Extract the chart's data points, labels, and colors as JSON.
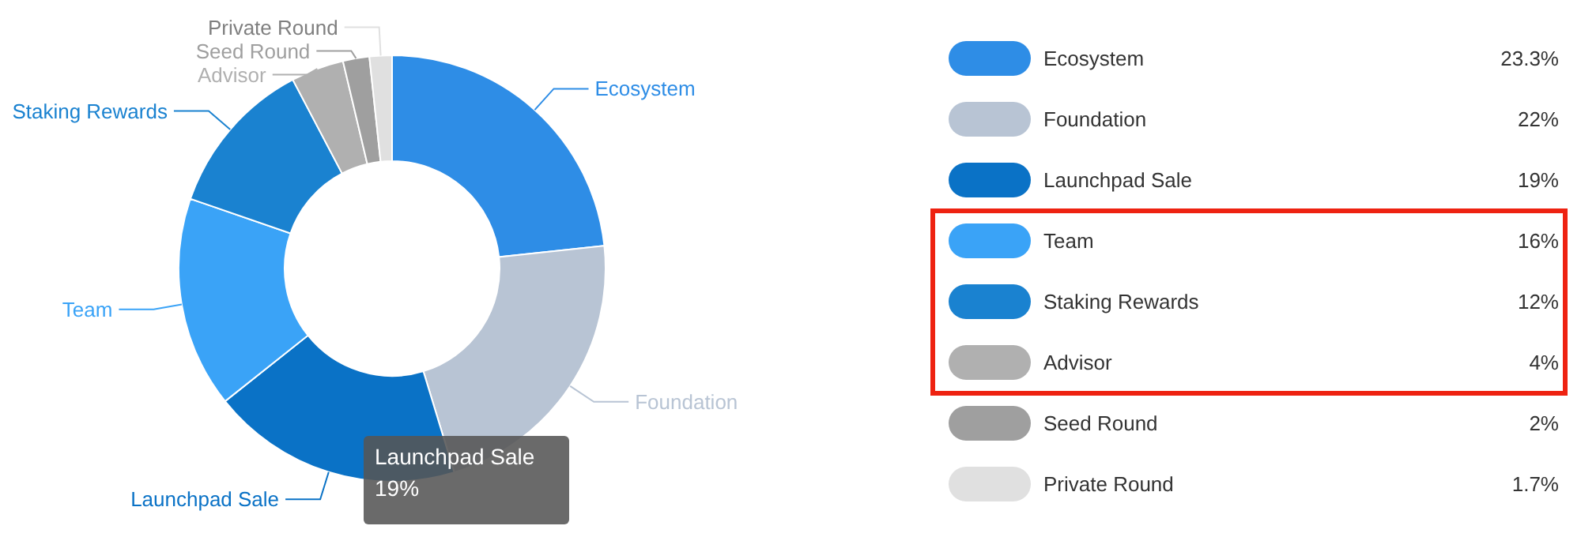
{
  "chart_data": {
    "type": "donut",
    "categories": [
      "Ecosystem",
      "Foundation",
      "Launchpad Sale",
      "Team",
      "Staking Rewards",
      "Advisor",
      "Seed Round",
      "Private Round"
    ],
    "values": [
      23.3,
      22,
      19,
      16,
      12,
      4,
      2,
      1.7
    ],
    "colors": [
      "#2e8de6",
      "#b8c4d4",
      "#0a72c6",
      "#3aa3f7",
      "#1a82d0",
      "#b0b0b0",
      "#9f9f9f",
      "#e0e0e0"
    ],
    "value_labels": [
      "23.3%",
      "22%",
      "19%",
      "16%",
      "12%",
      "4%",
      "2%",
      "1.7%"
    ],
    "legend": "right",
    "annotations": [
      "Launchpad Sale\n19%"
    ]
  }
}
